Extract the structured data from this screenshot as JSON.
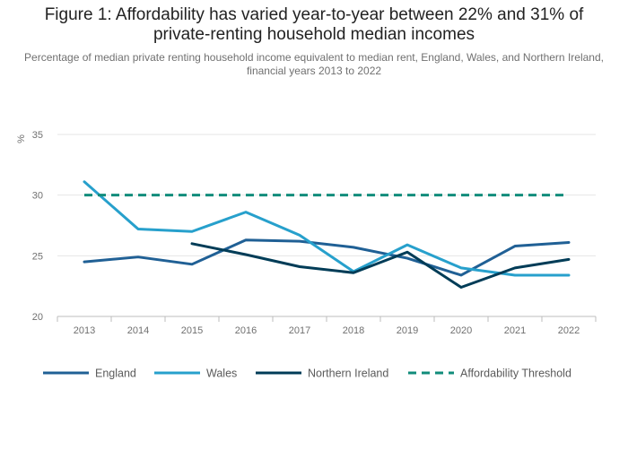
{
  "header": {
    "title": "Figure 1: Affordability has varied year-to-year between 22% and 31% of private-renting household median incomes",
    "subtitle": "Percentage of median private renting household income equivalent to median rent, England, Wales, and Northern Ireland, financial years 2013 to 2022"
  },
  "chart_data": {
    "type": "line",
    "title": "Figure 1: Affordability has varied year-to-year between 22% and 31% of private-renting household median incomes",
    "subtitle": "Percentage of median private renting household income equivalent to median rent, England, Wales, and Northern Ireland, financial years 2013 to 2022",
    "xlabel": "",
    "ylabel": "%",
    "ylim": [
      20,
      35
    ],
    "yticks": [
      20,
      25,
      30,
      35
    ],
    "categories": [
      "2013",
      "2014",
      "2015",
      "2016",
      "2017",
      "2018",
      "2019",
      "2020",
      "2021",
      "2022"
    ],
    "grid": true,
    "legend_position": "bottom",
    "series": [
      {
        "name": "England",
        "color": "#206095",
        "dash": "solid",
        "values": [
          24.5,
          24.9,
          24.3,
          26.3,
          26.2,
          25.7,
          24.8,
          23.4,
          25.8,
          26.1
        ]
      },
      {
        "name": "Wales",
        "color": "#27a0cc",
        "dash": "solid",
        "values": [
          31.1,
          27.2,
          27.0,
          28.6,
          26.7,
          23.7,
          25.9,
          24.0,
          23.4,
          23.4
        ]
      },
      {
        "name": "Northern Ireland",
        "color": "#003c57",
        "dash": "solid",
        "values": [
          null,
          null,
          26.0,
          25.1,
          24.1,
          23.6,
          25.3,
          22.4,
          24.0,
          24.7
        ]
      },
      {
        "name": "Affordability Threshold",
        "color": "#118c7b",
        "dash": "dashed",
        "values": [
          30,
          30,
          30,
          30,
          30,
          30,
          30,
          30,
          30,
          30
        ]
      }
    ]
  }
}
